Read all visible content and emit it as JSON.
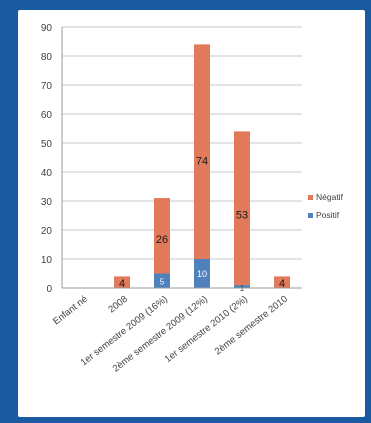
{
  "chart_data": {
    "type": "bar",
    "stacked": true,
    "categories": [
      "Enfant né",
      "2008",
      "1er semestre 2009 (16%)",
      "2ème semestre 2009 (12%)",
      "1er semestre 2010 (2%)",
      "2ème semestre 2010"
    ],
    "series": [
      {
        "name": "Positif",
        "color": "#4f81bd",
        "values": [
          0,
          0,
          5,
          10,
          1,
          0
        ],
        "labels": [
          "",
          "",
          "5",
          "10",
          "1",
          ""
        ]
      },
      {
        "name": "Négatif",
        "color": "#e07a5a",
        "values": [
          0,
          4,
          26,
          74,
          53,
          4
        ],
        "labels": [
          "",
          "4",
          "26",
          "74",
          "53",
          "4"
        ]
      }
    ],
    "yticks": [
      "0",
      "10",
      "20",
      "30",
      "40",
      "50",
      "60",
      "70",
      "80",
      "90"
    ],
    "ylim": [
      0,
      90
    ],
    "grid": true,
    "legend": "right",
    "legend_entries": [
      "Négatif",
      "Positif"
    ]
  }
}
